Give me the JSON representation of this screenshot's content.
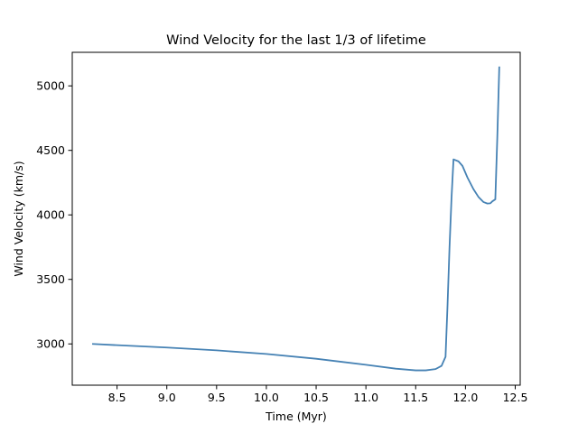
{
  "chart_data": {
    "type": "line",
    "title": "Wind Velocity for the last 1/3 of lifetime",
    "xlabel": "Time (Myr)",
    "ylabel": "Wind Velocity (km/s)",
    "xlim": [
      8.05,
      12.55
    ],
    "ylim": [
      2680,
      5260
    ],
    "xticks": [
      8.5,
      9.0,
      9.5,
      10.0,
      10.5,
      11.0,
      11.5,
      12.0,
      12.5
    ],
    "xtick_labels": [
      "8.5",
      "9.0",
      "9.5",
      "10.0",
      "10.5",
      "11.0",
      "11.5",
      "12.0",
      "12.5"
    ],
    "yticks": [
      3000,
      3500,
      4000,
      4500,
      5000
    ],
    "ytick_labels": [
      "3000",
      "3500",
      "4000",
      "4500",
      "5000"
    ],
    "grid": false,
    "line_color": "#4682b4",
    "series": [
      {
        "name": "",
        "x": [
          8.25,
          8.5,
          9.0,
          9.5,
          10.0,
          10.5,
          11.0,
          11.3,
          11.5,
          11.6,
          11.7,
          11.76,
          11.8,
          11.82,
          11.84,
          11.86,
          11.88,
          11.93,
          11.97,
          12.02,
          12.08,
          12.13,
          12.18,
          12.22,
          12.25,
          12.27,
          12.3,
          12.32,
          12.34
        ],
        "y": [
          3000,
          2990,
          2972,
          2950,
          2922,
          2885,
          2838,
          2808,
          2795,
          2795,
          2805,
          2830,
          2900,
          3300,
          3750,
          4130,
          4430,
          4415,
          4380,
          4290,
          4200,
          4140,
          4100,
          4088,
          4090,
          4105,
          4120,
          4600,
          5150
        ]
      }
    ]
  }
}
